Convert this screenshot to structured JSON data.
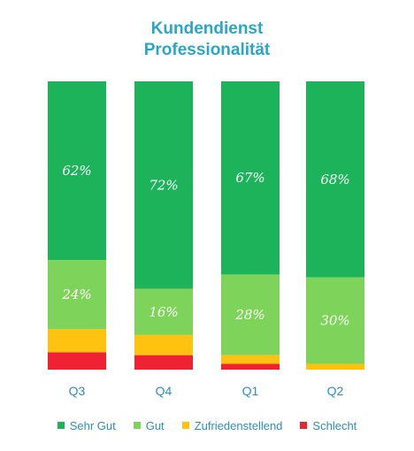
{
  "title_line1": "Kundendienst",
  "title_line2": "Professionalität",
  "chart_data": {
    "type": "bar",
    "stacked": true,
    "categories": [
      "Q3",
      "Q4",
      "Q1",
      "Q2"
    ],
    "series": [
      {
        "name": "Sehr Gut",
        "values": [
          62,
          72,
          67,
          68
        ],
        "color": "#1db35a",
        "labels": [
          "62%",
          "72%",
          "67%",
          "68%"
        ]
      },
      {
        "name": "Gut",
        "values": [
          24,
          16,
          28,
          30
        ],
        "color": "#7ed35a",
        "labels": [
          "24%",
          "16%",
          "28%",
          "30%"
        ]
      },
      {
        "name": "Zufriedenstellend",
        "values": [
          8,
          7,
          3,
          2
        ],
        "color": "#ffc20e"
      },
      {
        "name": "Schlecht",
        "values": [
          6,
          5,
          2,
          0
        ],
        "color": "#ee2233"
      }
    ],
    "ylim": [
      0,
      100
    ],
    "grid": false,
    "legend_position": "bottom"
  }
}
